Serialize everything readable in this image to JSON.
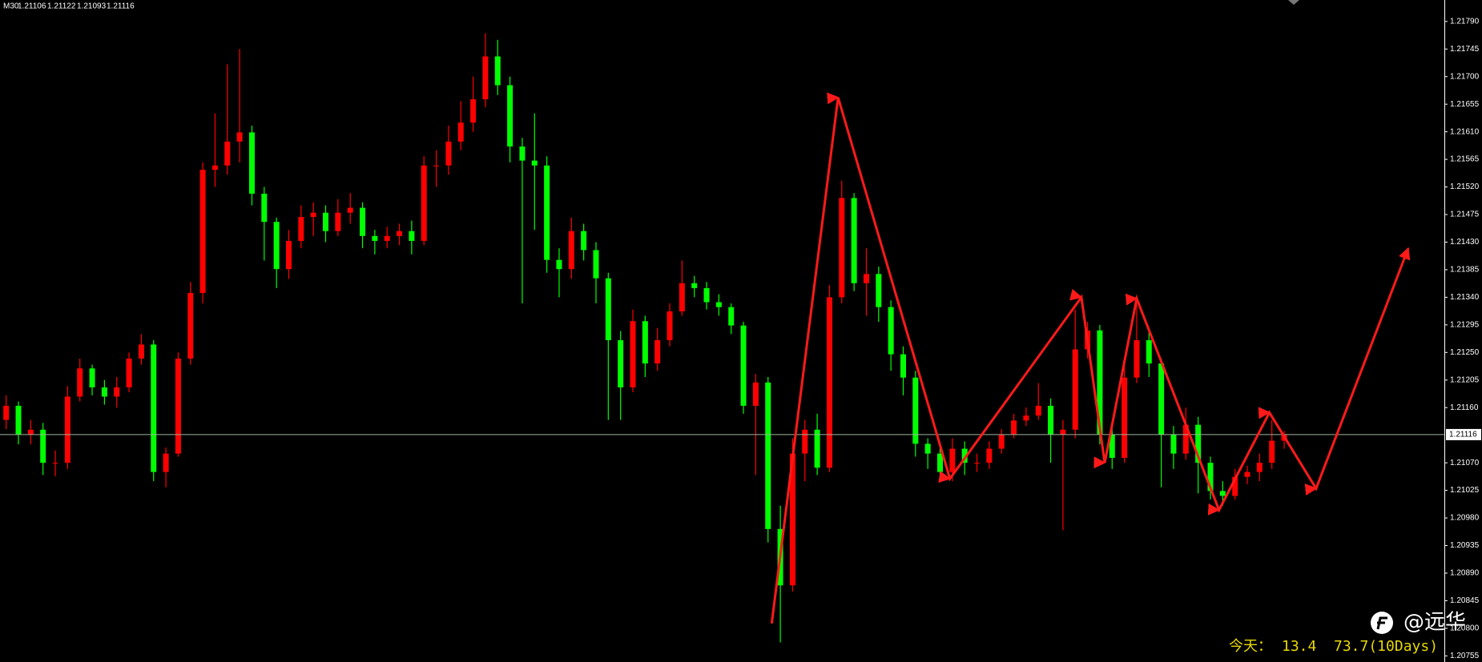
{
  "chart_data": {
    "type": "candlestick",
    "timeframe": "M30",
    "header_ohlc": [
      1.21106,
      1.21122,
      1.21093,
      1.21116
    ],
    "up_color": "#ff0000",
    "down_color": "#00ff00",
    "open": [
      1.2114,
      1.21163,
      1.21116,
      1.21124,
      1.2107,
      1.2107,
      1.21178,
      1.21224,
      1.21193,
      1.21178,
      1.21193,
      1.2124,
      1.21263,
      1.21055,
      1.21085,
      1.2124,
      1.21347,
      1.21548,
      1.21555,
      1.21594,
      1.21609,
      1.21509,
      1.21463,
      1.21386,
      1.21432,
      1.21471,
      1.21478,
      1.21448,
      1.21478,
      1.21486,
      1.2144,
      1.21432,
      1.2144,
      1.21448,
      1.21432,
      1.21555,
      1.21555,
      1.21594,
      1.21625,
      1.21663,
      1.21733,
      1.21686,
      1.21586,
      1.21563,
      1.21555,
      1.21401,
      1.21386,
      1.21448,
      1.21417,
      1.21371,
      1.2127,
      1.21193,
      1.21301,
      1.21232,
      1.2127,
      1.21317,
      1.21363,
      1.21355,
      1.21332,
      1.21324,
      1.21294,
      1.21163,
      1.21201,
      1.20962,
      1.2087,
      1.21085,
      1.21124,
      1.21062,
      1.2134,
      1.21502,
      1.21363,
      1.21378,
      1.21324,
      1.21247,
      1.21209,
      1.21101,
      1.21085,
      1.21055,
      1.21093,
      1.2107,
      1.2107,
      1.21093,
      1.21116,
      1.21139,
      1.21147,
      1.21163,
      1.21116,
      1.21124,
      1.21255,
      1.21286,
      1.21116,
      1.21078,
      1.21209,
      1.2127,
      1.21232,
      1.21116,
      1.21085,
      1.21132,
      1.2107,
      1.21024,
      1.21016,
      1.21047,
      1.21055,
      1.2107,
      1.21106
    ],
    "high": [
      1.2118,
      1.2117,
      1.2114,
      1.21135,
      1.2109,
      1.21195,
      1.2124,
      1.2123,
      1.21205,
      1.2121,
      1.2125,
      1.2128,
      1.2127,
      1.21095,
      1.2125,
      1.21365,
      1.2156,
      1.2164,
      1.2172,
      1.21745,
      1.2162,
      1.2152,
      1.2147,
      1.2145,
      1.2149,
      1.21495,
      1.2149,
      1.215,
      1.2151,
      1.21495,
      1.2145,
      1.21455,
      1.2146,
      1.21465,
      1.2157,
      1.2158,
      1.2162,
      1.2166,
      1.217,
      1.21771,
      1.2176,
      1.217,
      1.216,
      1.2164,
      1.2157,
      1.2142,
      1.2147,
      1.2146,
      1.2143,
      1.2138,
      1.21285,
      1.2132,
      1.2131,
      1.2129,
      1.2133,
      1.214,
      1.21375,
      1.21365,
      1.21345,
      1.2133,
      1.213,
      1.21215,
      1.2121,
      1.21,
      1.2111,
      1.2114,
      1.2115,
      1.2136,
      1.2153,
      1.2151,
      1.2142,
      1.2139,
      1.21335,
      1.2126,
      1.2122,
      1.2111,
      1.211,
      1.2111,
      1.21105,
      1.21085,
      1.21105,
      1.21125,
      1.2115,
      1.2116,
      1.212,
      1.21175,
      1.2114,
      1.2132,
      1.213,
      1.21295,
      1.2113,
      1.2123,
      1.2134,
      1.21285,
      1.2124,
      1.2113,
      1.2116,
      1.21145,
      1.2108,
      1.2104,
      1.2106,
      1.21065,
      1.21085,
      1.2114,
      1.21122
    ],
    "low": [
      1.21125,
      1.211,
      1.211,
      1.2105,
      1.21048,
      1.2106,
      1.2117,
      1.2118,
      1.21165,
      1.2116,
      1.21185,
      1.2123,
      1.2104,
      1.2103,
      1.2108,
      1.2123,
      1.2133,
      1.2152,
      1.2154,
      1.2156,
      1.2149,
      1.214,
      1.21355,
      1.2137,
      1.2142,
      1.2144,
      1.2143,
      1.2144,
      1.2146,
      1.2142,
      1.2141,
      1.2142,
      1.21425,
      1.2141,
      1.21425,
      1.2152,
      1.2154,
      1.2158,
      1.2161,
      1.2165,
      1.2167,
      1.2156,
      1.2133,
      1.2145,
      1.2138,
      1.2134,
      1.2137,
      1.214,
      1.2133,
      1.2114,
      1.2114,
      1.21185,
      1.2121,
      1.2122,
      1.2126,
      1.2131,
      1.2134,
      1.2132,
      1.2131,
      1.2128,
      1.2115,
      1.2105,
      1.2094,
      1.20777,
      1.2086,
      1.2104,
      1.2105,
      1.21055,
      1.2133,
      1.2135,
      1.2131,
      1.213,
      1.2122,
      1.2118,
      1.2108,
      1.2106,
      1.2104,
      1.2104,
      1.2105,
      1.21055,
      1.2106,
      1.21085,
      1.2111,
      1.2113,
      1.2114,
      1.2107,
      1.2096,
      1.2111,
      1.2124,
      1.211,
      1.2106,
      1.2107,
      1.212,
      1.2121,
      1.2103,
      1.2106,
      1.21075,
      1.2102,
      1.2101,
      1.21,
      1.2101,
      1.21035,
      1.2104,
      1.2106,
      1.21093
    ],
    "close": [
      1.21163,
      1.21116,
      1.21124,
      1.2107,
      1.2107,
      1.21178,
      1.21224,
      1.21193,
      1.21178,
      1.21193,
      1.2124,
      1.21263,
      1.21055,
      1.21085,
      1.2124,
      1.21347,
      1.21548,
      1.21555,
      1.21594,
      1.21609,
      1.21509,
      1.21463,
      1.21386,
      1.21432,
      1.21471,
      1.21478,
      1.21448,
      1.21478,
      1.21486,
      1.2144,
      1.21432,
      1.2144,
      1.21448,
      1.21432,
      1.21555,
      1.21555,
      1.21594,
      1.21625,
      1.21663,
      1.21733,
      1.21686,
      1.21586,
      1.21563,
      1.21555,
      1.21401,
      1.21386,
      1.21448,
      1.21417,
      1.21371,
      1.2127,
      1.21193,
      1.21301,
      1.21232,
      1.2127,
      1.21317,
      1.21363,
      1.21355,
      1.21332,
      1.21324,
      1.21294,
      1.21163,
      1.21201,
      1.20962,
      1.2087,
      1.21085,
      1.21124,
      1.21062,
      1.2134,
      1.21502,
      1.21363,
      1.21378,
      1.21324,
      1.21247,
      1.21209,
      1.21101,
      1.21085,
      1.21055,
      1.21093,
      1.2107,
      1.2107,
      1.21093,
      1.21116,
      1.21139,
      1.21147,
      1.21163,
      1.21116,
      1.21124,
      1.21255,
      1.21286,
      1.21116,
      1.21078,
      1.21209,
      1.2127,
      1.21232,
      1.21116,
      1.21085,
      1.21132,
      1.2107,
      1.21024,
      1.21016,
      1.21047,
      1.21055,
      1.2107,
      1.21106,
      1.21116
    ],
    "ylim": [
      1.20745,
      1.21825
    ],
    "yticks": [
      {
        "value": 1.20755,
        "label": "1.20755"
      },
      {
        "value": 1.208,
        "label": "1.20800"
      },
      {
        "value": 1.20845,
        "label": "1.20845"
      },
      {
        "value": 1.2089,
        "label": "1.20890"
      },
      {
        "value": 1.20935,
        "label": "1.20935"
      },
      {
        "value": 1.2098,
        "label": "1.20980"
      },
      {
        "value": 1.21025,
        "label": "1.21025"
      },
      {
        "value": 1.2107,
        "label": "1.21070"
      },
      {
        "value": 1.2116,
        "label": "1.21160"
      },
      {
        "value": 1.21205,
        "label": "1.21205"
      },
      {
        "value": 1.2125,
        "label": "1.21250"
      },
      {
        "value": 1.21295,
        "label": "1.21295"
      },
      {
        "value": 1.2134,
        "label": "1.21340"
      },
      {
        "value": 1.21385,
        "label": "1.21385"
      },
      {
        "value": 1.2143,
        "label": "1.21430"
      },
      {
        "value": 1.21475,
        "label": "1.21475"
      },
      {
        "value": 1.2152,
        "label": "1.21520"
      },
      {
        "value": 1.21565,
        "label": "1.21565"
      },
      {
        "value": 1.2161,
        "label": "1.21610"
      },
      {
        "value": 1.21655,
        "label": "1.21655"
      },
      {
        "value": 1.217,
        "label": "1.21700"
      },
      {
        "value": 1.21745,
        "label": "1.21745"
      },
      {
        "value": 1.2179,
        "label": "1.21790"
      }
    ],
    "current_price": 1.21116,
    "current_line_color": "#9fb59f",
    "zigzag": {
      "color": "#ff1a1a",
      "x": [
        62.3,
        67.7,
        76.8,
        87.5,
        89.4,
        92,
        98.7,
        102.8,
        106.6,
        114.1
      ],
      "y": [
        1.20808,
        1.21666,
        1.21044,
        1.2134,
        1.2107,
        1.21338,
        1.20993,
        1.21152,
        1.21028,
        1.2142
      ]
    },
    "footer": {
      "label": "今天：",
      "today": 13.4,
      "ten_days": "73.7(10Days)"
    },
    "watermark": "@远华"
  }
}
